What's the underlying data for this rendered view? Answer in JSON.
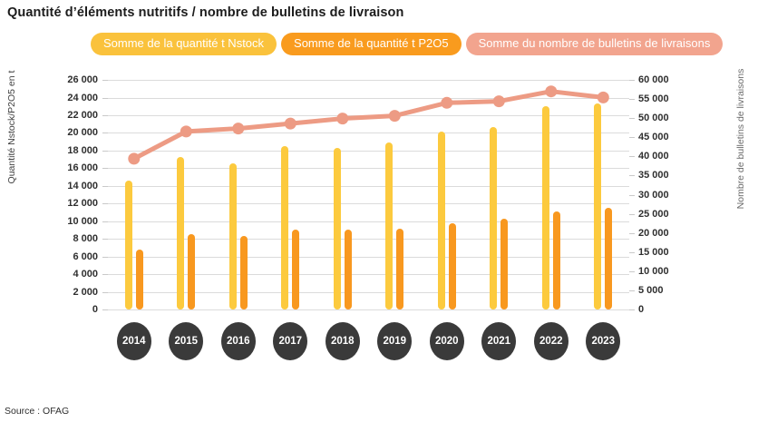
{
  "page": {
    "title": "Quantité d’éléments nutritifs / nombre de bulletins de livraison",
    "source": "Source : OFAG"
  },
  "legend": {
    "position": "top",
    "items": [
      {
        "label": "Somme de la quantité t Nstock",
        "color": "#fac23c"
      },
      {
        "label": "Somme de la quantité t P2O5",
        "color": "#f99b1e"
      },
      {
        "label": "Somme du nombre de bulletins de livraisons",
        "color": "#f2a48e"
      }
    ]
  },
  "chart_data": {
    "type": "bar",
    "subtype": "combo-bar-line-dual-axis",
    "title": "Quantité d’éléments nutritifs / nombre de bulletins de livraison",
    "categories": [
      "2014",
      "2015",
      "2016",
      "2017",
      "2018",
      "2019",
      "2020",
      "2021",
      "2022",
      "2023"
    ],
    "series": [
      {
        "name": "Somme de la quantité t Nstock",
        "type": "bar",
        "axis": "left",
        "color": "#fcca3e",
        "values": [
          14600,
          17300,
          16600,
          18500,
          18300,
          18900,
          20100,
          20700,
          23000,
          23300
        ]
      },
      {
        "name": "Somme de la quantité t P2O5",
        "type": "bar",
        "axis": "left",
        "color": "#f8981f",
        "values": [
          6800,
          8500,
          8300,
          9100,
          9000,
          9200,
          9800,
          10300,
          11100,
          11500
        ]
      },
      {
        "name": "Somme du nombre de bulletins de livraisons",
        "type": "line",
        "axis": "right",
        "color": "#ed9b84",
        "values": [
          39400,
          46500,
          47300,
          48600,
          49900,
          50600,
          54000,
          54400,
          57000,
          55400
        ]
      }
    ],
    "axes": {
      "left": {
        "label": "Quantité Nstock/P2O5 en t",
        "min": 0,
        "max": 26000,
        "step": 2000
      },
      "right": {
        "label": "Nombre de bulletins de livraisons",
        "min": 0,
        "max": 60000,
        "step": 5000
      }
    },
    "grid": true,
    "legend_position": "top",
    "x_label_style": "dark-circle"
  }
}
